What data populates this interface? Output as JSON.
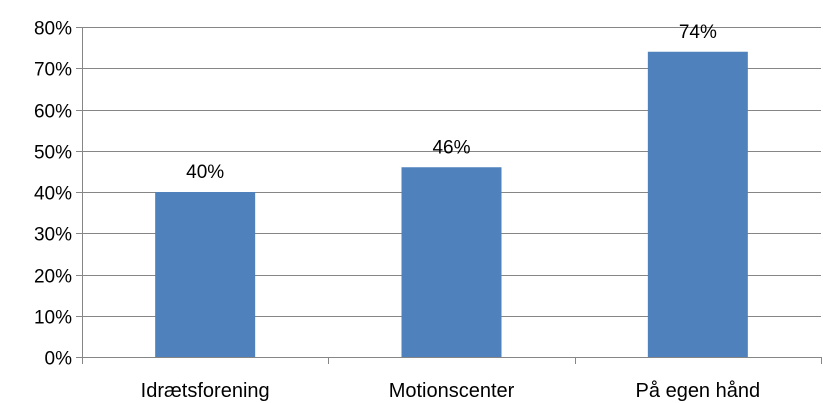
{
  "chart_data": {
    "type": "bar",
    "categories": [
      "Idrætsforening",
      "Motionscenter",
      "På egen hånd"
    ],
    "values": [
      0.4,
      0.46,
      0.74
    ],
    "data_labels": [
      "40%",
      "46%",
      "74%"
    ],
    "ylim": [
      0,
      0.8
    ],
    "y_ticks": [
      0,
      0.1,
      0.2,
      0.3,
      0.4,
      0.5,
      0.6,
      0.7,
      0.8
    ],
    "y_tick_labels": [
      "0%",
      "10%",
      "20%",
      "30%",
      "40%",
      "50%",
      "60%",
      "70%",
      "80%"
    ],
    "grid": true,
    "legend": "none",
    "bar_color": "#4F81BD",
    "grid_color": "#868686",
    "axis_color": "#868686"
  }
}
